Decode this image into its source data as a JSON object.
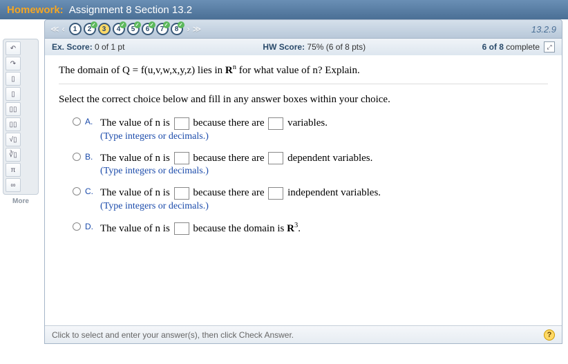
{
  "header": {
    "label": "Homework:",
    "title": "Assignment 8 Section 13.2"
  },
  "toolbox": {
    "buttons": [
      "↶",
      "↷",
      "▯",
      "▯",
      "▯▯",
      "▯▯",
      "√▯",
      "∛▯",
      "π",
      "∞"
    ],
    "more_label": "More"
  },
  "nav": {
    "arrows_left": [
      "≪",
      "‹"
    ],
    "arrows_right": [
      "›",
      "≫"
    ],
    "questions": [
      {
        "n": "1",
        "checked": false,
        "current": false
      },
      {
        "n": "2",
        "checked": true,
        "current": false
      },
      {
        "n": "3",
        "checked": false,
        "current": true
      },
      {
        "n": "4",
        "checked": true,
        "current": false
      },
      {
        "n": "5",
        "checked": true,
        "current": false
      },
      {
        "n": "6",
        "checked": true,
        "current": false
      },
      {
        "n": "7",
        "checked": true,
        "current": false
      },
      {
        "n": "8",
        "checked": true,
        "current": false
      }
    ],
    "question_ref": "13.2.9"
  },
  "scorebar": {
    "ex_label": "Ex. Score:",
    "ex_value": " 0 of 1 pt",
    "hw_label": "HW Score:",
    "hw_value": " 75% (6 of 8 pts)",
    "progress_bold": "6 of 8",
    "progress_rest": " complete"
  },
  "question": {
    "text_pre": "The domain of Q = f(u,v,w,x,y,z) lies in ",
    "text_bold": "R",
    "text_sup": "n",
    "text_post": " for what value of n? Explain.",
    "instruction": "Select the correct choice below and fill in any answer boxes within your choice.",
    "choices": [
      {
        "label": "A.",
        "pre": "The value of n is ",
        "mid": " because there are ",
        "post": " variables.",
        "hint": "(Type integers or decimals.)",
        "boxes": 2
      },
      {
        "label": "B.",
        "pre": "The value of n is ",
        "mid": " because there are ",
        "post": " dependent variables.",
        "hint": "(Type integers or decimals.)",
        "boxes": 2
      },
      {
        "label": "C.",
        "pre": "The value of n is ",
        "mid": " because there are ",
        "post": " independent variables.",
        "hint": "(Type integers or decimals.)",
        "boxes": 2
      },
      {
        "label": "D.",
        "pre": "The value of n is ",
        "mid": " because the domain is ",
        "post_bold": "R",
        "post_sup": "3",
        "post": ".",
        "hint": "",
        "boxes": 1
      }
    ]
  },
  "footer": {
    "text": "Click to select and enter your answer(s), then click Check Answer."
  }
}
